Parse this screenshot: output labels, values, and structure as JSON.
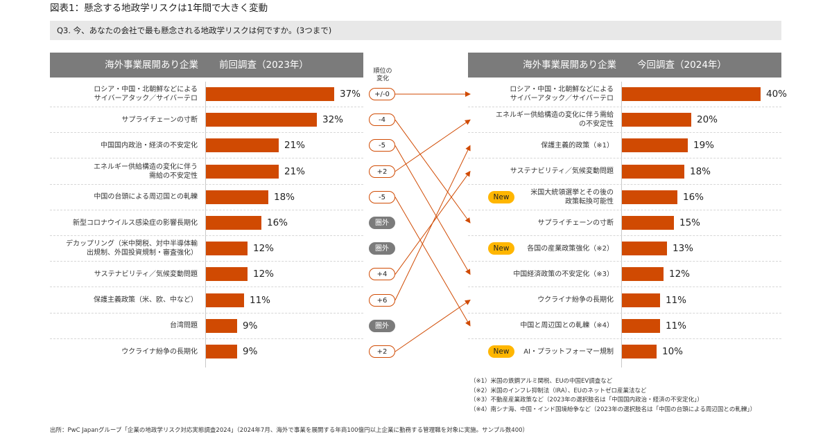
{
  "figure_title": "図表1：懸念する地政学リスクは1年間で大きく変動",
  "question": "Q3. 今、あなたの会社で最も懸念される地政学リスクは何ですか。(3つまで)",
  "left_header": {
    "segment": "海外事業展開あり企業",
    "survey": "前回調査（2023年）"
  },
  "right_header": {
    "segment": "海外事業展開あり企業",
    "survey": "今回調査（2024年）"
  },
  "change_label": "順位の変化",
  "new_label": "New",
  "colors": {
    "bar": "#d04a02",
    "header": "#7b7b7b",
    "new_badge": "#ffb600",
    "out_badge": "#7b7b7b",
    "arrow": "#d04a02"
  },
  "chart_data": [
    {
      "type": "bar",
      "orientation": "horizontal",
      "title": "前回調査（2023年）",
      "categories": [
        "ロシア・中国・北朝鮮などによるサイバーアタック／サイバーテロ",
        "サプライチェーンの寸断",
        "中国国内政治・経済の不安定化",
        "エネルギー供給構造の変化に伴う需給の不安定性",
        "中国の台頭による周辺国との軋轢",
        "新型コロナウイルス感染症の影響長期化",
        "デカップリング（米中関税、対中半導体輸出規制、外国投資規制・審査強化）",
        "サステナビリティ／気候変動問題",
        "保護主義政策（米、欧、中など）",
        "台湾問題",
        "ウクライナ紛争の長期化"
      ],
      "label_lines": [
        [
          "ロシア・中国・北朝鮮などによる",
          "サイバーアタック／サイバーテロ"
        ],
        [
          "サプライチェーンの寸断"
        ],
        [
          "中国国内政治・経済の不安定化"
        ],
        [
          "エネルギー供給構造の変化に伴う",
          "需給の不安定性"
        ],
        [
          "中国の台頭による周辺国との軋轢"
        ],
        [
          "新型コロナウイルス感染症の影響長期化"
        ],
        [
          "デカップリング（米中関税、対中半導体輸",
          "出規制、外国投資規制・審査強化）"
        ],
        [
          "サステナビリティ／気候変動問題"
        ],
        [
          "保護主義政策（米、欧、中など）"
        ],
        [
          "台湾問題"
        ],
        [
          "ウクライナ紛争の長期化"
        ]
      ],
      "values": [
        37,
        32,
        21,
        21,
        18,
        16,
        12,
        12,
        11,
        9,
        9
      ],
      "value_labels": [
        "37%",
        "32%",
        "21%",
        "21%",
        "18%",
        "16%",
        "12%",
        "12%",
        "11%",
        "9%",
        "9%"
      ],
      "rank_change": [
        "+/-0",
        "-4",
        "-5",
        "+2",
        "-5",
        "圏外",
        "圏外",
        "+4",
        "+6",
        "圏外",
        "+2"
      ],
      "next_rank": [
        1,
        6,
        8,
        2,
        10,
        null,
        null,
        4,
        3,
        null,
        9
      ]
    },
    {
      "type": "bar",
      "orientation": "horizontal",
      "title": "今回調査（2024年）",
      "categories": [
        "ロシア・中国・北朝鮮などによるサイバーアタック／サイバーテロ",
        "エネルギー供給構造の変化に伴う需給の不安定性",
        "保護主義政策（※1）",
        "サステナビリティ／気候変動問題",
        "米国大統領選挙とその後の政策転換可能性",
        "サプライチェーンの寸断",
        "各国の産業政策強化（※2）",
        "中国経済政策の不安定化（※3）",
        "ウクライナ紛争の長期化",
        "中国と周辺国との軋轢（※4）",
        "AI・プラットフォーマー規制"
      ],
      "label_lines": [
        [
          "ロシア・中国・北朝鮮などによる",
          "サイバーアタック／サイバーテロ"
        ],
        [
          "エネルギー供給構造の変化に伴う需給",
          "の不安定性"
        ],
        [
          "保護主義的政策（※1）"
        ],
        [
          "サステナビリティ／気候変動問題"
        ],
        [
          "米国大統領選挙とその後の",
          "政策転換可能性"
        ],
        [
          "サプライチェーンの寸断"
        ],
        [
          "各国の産業政策強化（※2）"
        ],
        [
          "中国経済政策の不安定化（※3）"
        ],
        [
          "ウクライナ紛争の長期化"
        ],
        [
          "中国と周辺国との軋轢（※4）"
        ],
        [
          "AI・プラットフォーマー規制"
        ]
      ],
      "values": [
        40,
        20,
        19,
        18,
        16,
        15,
        13,
        12,
        11,
        11,
        10
      ],
      "value_labels": [
        "40%",
        "20%",
        "19%",
        "18%",
        "16%",
        "15%",
        "13%",
        "12%",
        "11%",
        "11%",
        "10%"
      ],
      "is_new": [
        false,
        false,
        false,
        false,
        true,
        false,
        true,
        false,
        false,
        false,
        true
      ]
    }
  ],
  "notes": [
    "（※1）米国の鉄鋼アルミ関税、EUの中国EV調査など",
    "（※2）米国のインフレ抑制法（IRA）、EUのネットゼロ産業法など",
    "（※3）不動産産業政策など（2023年の選択肢名は「中国国内政治・経済の不安定化」）",
    "（※4）南シナ海、中国・インド国境紛争など（2023年の選択肢名は「中国の台頭による周辺国との軋轢」）"
  ],
  "source": "出所：PwC Japanグループ「企業の地政学リスク対応実態調査2024」（2024年7月、海外で事業を展開する年商100億円以上企業に勤務する管理職を対象に実施。サンプル数400）"
}
